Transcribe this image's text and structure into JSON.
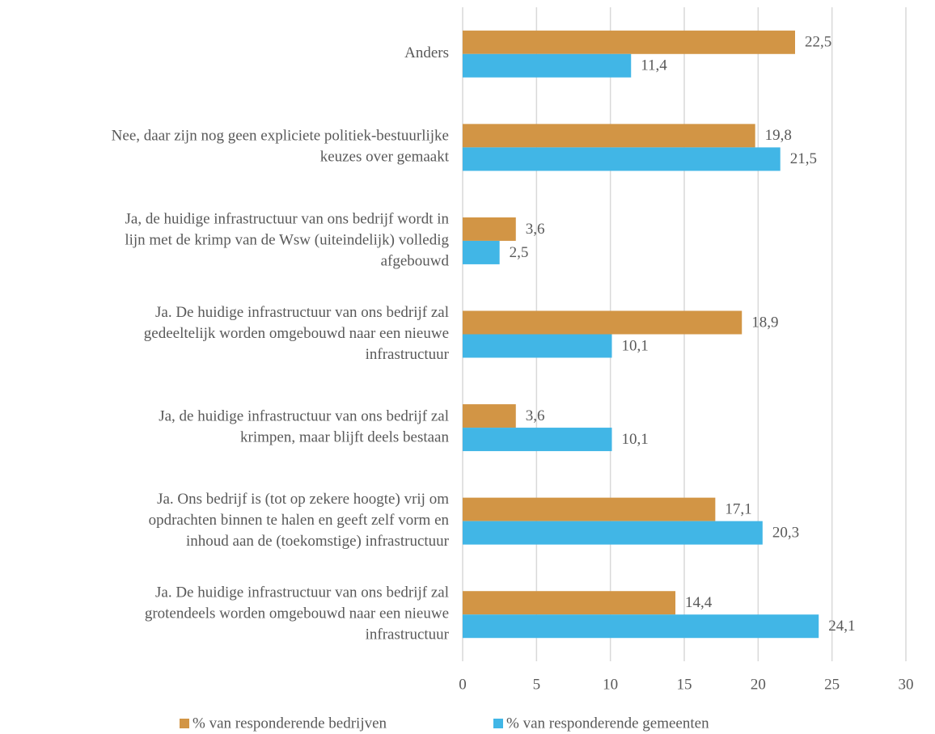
{
  "chart_data": {
    "type": "bar",
    "orientation": "horizontal",
    "categories": [
      [
        "Anders"
      ],
      [
        "Nee, daar zijn nog geen expliciete politiek-bestuurlijke",
        "keuzes over gemaakt"
      ],
      [
        "Ja, de huidige infrastructuur van ons bedrijf wordt in",
        "lijn met de krimp van de Wsw (uiteindelijk) volledig",
        "afgebouwd"
      ],
      [
        "Ja. De huidige infrastructuur van ons bedrijf zal",
        "gedeeltelijk worden omgebouwd naar een nieuwe",
        "infrastructuur"
      ],
      [
        "Ja, de huidige infrastructuur van ons bedrijf zal",
        "krimpen, maar blijft deels bestaan"
      ],
      [
        "Ja. Ons bedrijf is (tot op zekere hoogte) vrij om",
        "opdrachten binnen te halen en geeft zelf vorm en",
        "inhoud aan de (toekomstige) infrastructuur"
      ],
      [
        "Ja. De huidige infrastructuur van ons bedrijf zal",
        "grotendeels worden omgebouwd naar een nieuwe",
        "infrastructuur"
      ]
    ],
    "series": [
      {
        "name": "% van responderende bedrijven",
        "color": "#d29545",
        "values": [
          22.5,
          19.8,
          3.6,
          18.9,
          3.6,
          17.1,
          14.4
        ],
        "value_labels": [
          "22,5",
          "19,8",
          "3,6",
          "18,9",
          "3,6",
          "17,1",
          "14,4"
        ]
      },
      {
        "name": "% van responderende gemeenten",
        "color": "#41b6e6",
        "values": [
          11.4,
          21.5,
          2.5,
          10.1,
          10.1,
          20.3,
          24.1
        ],
        "value_labels": [
          "11,4",
          "21,5",
          "2,5",
          "10,1",
          "10,1",
          "20,3",
          "24,1"
        ]
      }
    ],
    "xlim": [
      0,
      30
    ],
    "xticks": [
      0,
      5,
      10,
      15,
      20,
      25,
      30
    ],
    "grid": true,
    "legend": "bottom"
  }
}
